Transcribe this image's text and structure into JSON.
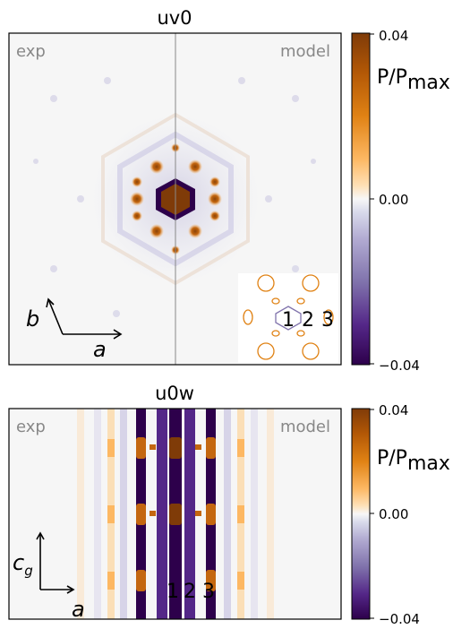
{
  "chart_data": [
    {
      "type": "heatmap",
      "title": "uv0",
      "left_label": "exp",
      "right_label": "model",
      "axis_label_1": "b",
      "axis_label_2": "a",
      "inset_labels": [
        "1",
        "2",
        "3"
      ],
      "colorbar": {
        "label_main": "P/P",
        "label_sub": "max",
        "ticks": [
          "0.04",
          "0.00",
          "−0.04"
        ],
        "range": [
          -0.04,
          0.04
        ],
        "colormap": [
          "#2d004b",
          "#f7f7f7",
          "#7f3b08"
        ]
      }
    },
    {
      "type": "heatmap",
      "title": "u0w",
      "left_label": "exp",
      "right_label": "model",
      "axis_label_1": "c",
      "axis_label_1_sub": "g",
      "axis_label_2": "a",
      "inset_labels": [
        "1",
        "2",
        "3"
      ],
      "colorbar": {
        "label_main": "P/P",
        "label_sub": "max",
        "ticks": [
          "0.04",
          "0.00",
          "−0.04"
        ],
        "range": [
          -0.04,
          0.04
        ],
        "colormap": [
          "#2d004b",
          "#f7f7f7",
          "#7f3b08"
        ]
      }
    }
  ]
}
